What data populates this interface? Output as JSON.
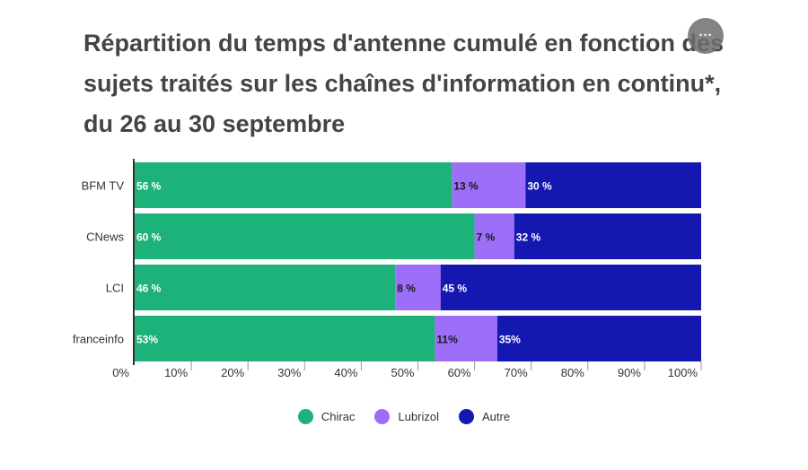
{
  "header": {
    "title": "Répartition du temps d'antenne cumulé en fonction des sujets traités sur les chaînes d'information en continu*, du 26 au 30 septembre",
    "menu_icon": "more-horizontal-icon",
    "menu_label": "···"
  },
  "chart_data": {
    "type": "bar",
    "orientation": "horizontal",
    "stacked": true,
    "categories": [
      "BFM TV",
      "CNews",
      "LCI",
      "franceinfo"
    ],
    "series": [
      {
        "name": "Chirac",
        "values": [
          56,
          60,
          46,
          53
        ],
        "labels": [
          "56 %",
          "60 %",
          "46 %",
          "53%"
        ],
        "color": "#1db27a"
      },
      {
        "name": "Lubrizol",
        "values": [
          13,
          7,
          8,
          11
        ],
        "labels": [
          "13 %",
          "7 %",
          "8 %",
          "11%"
        ],
        "color": "#9d6ef7"
      },
      {
        "name": "Autre",
        "values": [
          30,
          32,
          45,
          35
        ],
        "labels": [
          "30 %",
          "32 %",
          "45 %",
          "35%"
        ],
        "color": "#1418b0"
      }
    ],
    "xlim": [
      0,
      100
    ],
    "xticks": [
      "0%",
      "10%",
      "20%",
      "30%",
      "40%",
      "50%",
      "60%",
      "70%",
      "80%",
      "90%",
      "100%"
    ],
    "grid": false,
    "legend_position": "bottom-center"
  }
}
